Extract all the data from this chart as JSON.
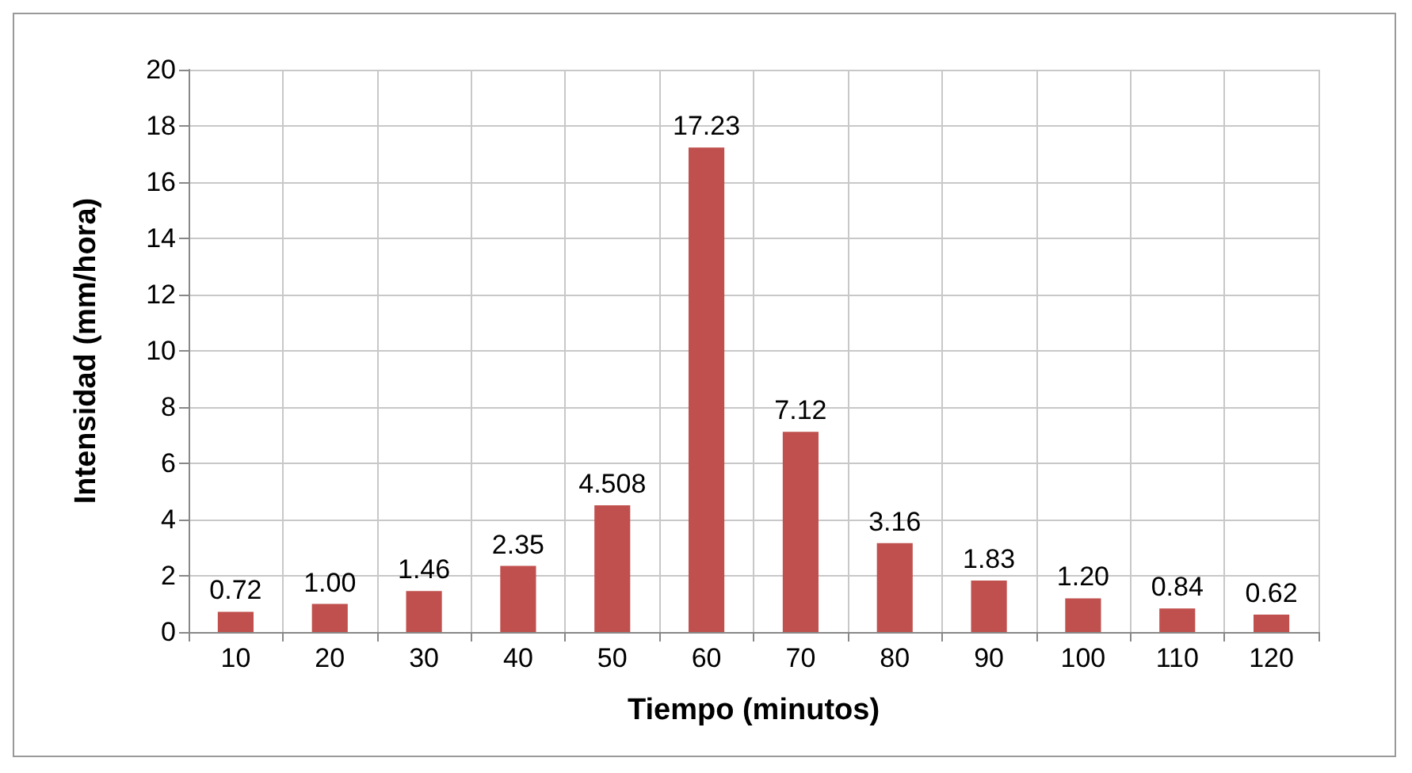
{
  "chart_data": {
    "type": "bar",
    "xlabel": "Tiempo (minutos)",
    "ylabel": "Intensidad (mm/hora)",
    "categories": [
      "10",
      "20",
      "30",
      "40",
      "50",
      "60",
      "70",
      "80",
      "90",
      "100",
      "110",
      "120"
    ],
    "values": [
      0.72,
      1.0,
      1.46,
      2.35,
      4.508,
      17.23,
      7.12,
      3.16,
      1.83,
      1.2,
      0.84,
      0.62
    ],
    "value_labels": [
      "0.72",
      "1.00",
      "1.46",
      "2.35",
      "4.508",
      "17.23",
      "7.12",
      "3.16",
      "1.83",
      "1.20",
      "0.84",
      "0.62"
    ],
    "color": "#c0504d",
    "ylim": [
      0,
      20
    ],
    "yticks": [
      0,
      2,
      4,
      6,
      8,
      10,
      12,
      14,
      16,
      18,
      20
    ],
    "grid": true
  }
}
